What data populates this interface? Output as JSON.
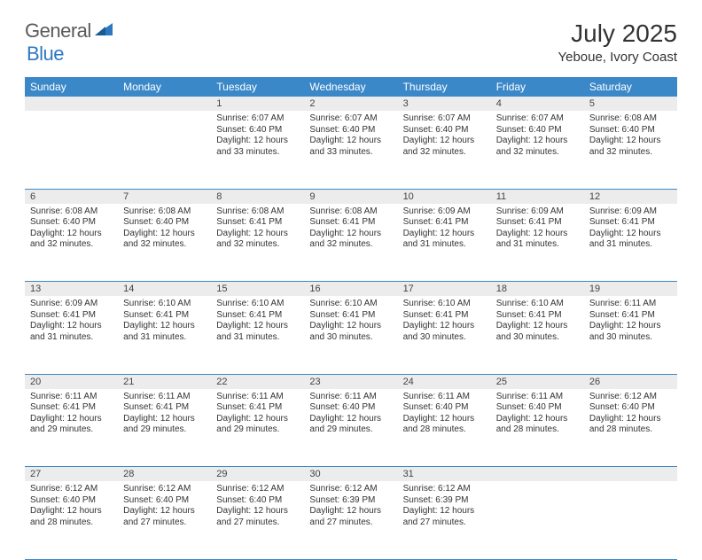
{
  "logo": {
    "general": "General",
    "blue": "Blue"
  },
  "title": "July 2025",
  "location": "Yeboue, Ivory Coast",
  "colors": {
    "header_bg": "#3b88c9",
    "header_text": "#ffffff",
    "daynum_bg": "#ececec",
    "border": "#3b88c9",
    "logo_gray": "#5a5a5a",
    "logo_blue": "#2d78c0",
    "body_text": "#333333"
  },
  "weekdays": [
    "Sunday",
    "Monday",
    "Tuesday",
    "Wednesday",
    "Thursday",
    "Friday",
    "Saturday"
  ],
  "weeks": [
    [
      null,
      null,
      {
        "n": "1",
        "sr": "Sunrise: 6:07 AM",
        "ss": "Sunset: 6:40 PM",
        "d1": "Daylight: 12 hours",
        "d2": "and 33 minutes."
      },
      {
        "n": "2",
        "sr": "Sunrise: 6:07 AM",
        "ss": "Sunset: 6:40 PM",
        "d1": "Daylight: 12 hours",
        "d2": "and 33 minutes."
      },
      {
        "n": "3",
        "sr": "Sunrise: 6:07 AM",
        "ss": "Sunset: 6:40 PM",
        "d1": "Daylight: 12 hours",
        "d2": "and 32 minutes."
      },
      {
        "n": "4",
        "sr": "Sunrise: 6:07 AM",
        "ss": "Sunset: 6:40 PM",
        "d1": "Daylight: 12 hours",
        "d2": "and 32 minutes."
      },
      {
        "n": "5",
        "sr": "Sunrise: 6:08 AM",
        "ss": "Sunset: 6:40 PM",
        "d1": "Daylight: 12 hours",
        "d2": "and 32 minutes."
      }
    ],
    [
      {
        "n": "6",
        "sr": "Sunrise: 6:08 AM",
        "ss": "Sunset: 6:40 PM",
        "d1": "Daylight: 12 hours",
        "d2": "and 32 minutes."
      },
      {
        "n": "7",
        "sr": "Sunrise: 6:08 AM",
        "ss": "Sunset: 6:40 PM",
        "d1": "Daylight: 12 hours",
        "d2": "and 32 minutes."
      },
      {
        "n": "8",
        "sr": "Sunrise: 6:08 AM",
        "ss": "Sunset: 6:41 PM",
        "d1": "Daylight: 12 hours",
        "d2": "and 32 minutes."
      },
      {
        "n": "9",
        "sr": "Sunrise: 6:08 AM",
        "ss": "Sunset: 6:41 PM",
        "d1": "Daylight: 12 hours",
        "d2": "and 32 minutes."
      },
      {
        "n": "10",
        "sr": "Sunrise: 6:09 AM",
        "ss": "Sunset: 6:41 PM",
        "d1": "Daylight: 12 hours",
        "d2": "and 31 minutes."
      },
      {
        "n": "11",
        "sr": "Sunrise: 6:09 AM",
        "ss": "Sunset: 6:41 PM",
        "d1": "Daylight: 12 hours",
        "d2": "and 31 minutes."
      },
      {
        "n": "12",
        "sr": "Sunrise: 6:09 AM",
        "ss": "Sunset: 6:41 PM",
        "d1": "Daylight: 12 hours",
        "d2": "and 31 minutes."
      }
    ],
    [
      {
        "n": "13",
        "sr": "Sunrise: 6:09 AM",
        "ss": "Sunset: 6:41 PM",
        "d1": "Daylight: 12 hours",
        "d2": "and 31 minutes."
      },
      {
        "n": "14",
        "sr": "Sunrise: 6:10 AM",
        "ss": "Sunset: 6:41 PM",
        "d1": "Daylight: 12 hours",
        "d2": "and 31 minutes."
      },
      {
        "n": "15",
        "sr": "Sunrise: 6:10 AM",
        "ss": "Sunset: 6:41 PM",
        "d1": "Daylight: 12 hours",
        "d2": "and 31 minutes."
      },
      {
        "n": "16",
        "sr": "Sunrise: 6:10 AM",
        "ss": "Sunset: 6:41 PM",
        "d1": "Daylight: 12 hours",
        "d2": "and 30 minutes."
      },
      {
        "n": "17",
        "sr": "Sunrise: 6:10 AM",
        "ss": "Sunset: 6:41 PM",
        "d1": "Daylight: 12 hours",
        "d2": "and 30 minutes."
      },
      {
        "n": "18",
        "sr": "Sunrise: 6:10 AM",
        "ss": "Sunset: 6:41 PM",
        "d1": "Daylight: 12 hours",
        "d2": "and 30 minutes."
      },
      {
        "n": "19",
        "sr": "Sunrise: 6:11 AM",
        "ss": "Sunset: 6:41 PM",
        "d1": "Daylight: 12 hours",
        "d2": "and 30 minutes."
      }
    ],
    [
      {
        "n": "20",
        "sr": "Sunrise: 6:11 AM",
        "ss": "Sunset: 6:41 PM",
        "d1": "Daylight: 12 hours",
        "d2": "and 29 minutes."
      },
      {
        "n": "21",
        "sr": "Sunrise: 6:11 AM",
        "ss": "Sunset: 6:41 PM",
        "d1": "Daylight: 12 hours",
        "d2": "and 29 minutes."
      },
      {
        "n": "22",
        "sr": "Sunrise: 6:11 AM",
        "ss": "Sunset: 6:41 PM",
        "d1": "Daylight: 12 hours",
        "d2": "and 29 minutes."
      },
      {
        "n": "23",
        "sr": "Sunrise: 6:11 AM",
        "ss": "Sunset: 6:40 PM",
        "d1": "Daylight: 12 hours",
        "d2": "and 29 minutes."
      },
      {
        "n": "24",
        "sr": "Sunrise: 6:11 AM",
        "ss": "Sunset: 6:40 PM",
        "d1": "Daylight: 12 hours",
        "d2": "and 28 minutes."
      },
      {
        "n": "25",
        "sr": "Sunrise: 6:11 AM",
        "ss": "Sunset: 6:40 PM",
        "d1": "Daylight: 12 hours",
        "d2": "and 28 minutes."
      },
      {
        "n": "26",
        "sr": "Sunrise: 6:12 AM",
        "ss": "Sunset: 6:40 PM",
        "d1": "Daylight: 12 hours",
        "d2": "and 28 minutes."
      }
    ],
    [
      {
        "n": "27",
        "sr": "Sunrise: 6:12 AM",
        "ss": "Sunset: 6:40 PM",
        "d1": "Daylight: 12 hours",
        "d2": "and 28 minutes."
      },
      {
        "n": "28",
        "sr": "Sunrise: 6:12 AM",
        "ss": "Sunset: 6:40 PM",
        "d1": "Daylight: 12 hours",
        "d2": "and 27 minutes."
      },
      {
        "n": "29",
        "sr": "Sunrise: 6:12 AM",
        "ss": "Sunset: 6:40 PM",
        "d1": "Daylight: 12 hours",
        "d2": "and 27 minutes."
      },
      {
        "n": "30",
        "sr": "Sunrise: 6:12 AM",
        "ss": "Sunset: 6:39 PM",
        "d1": "Daylight: 12 hours",
        "d2": "and 27 minutes."
      },
      {
        "n": "31",
        "sr": "Sunrise: 6:12 AM",
        "ss": "Sunset: 6:39 PM",
        "d1": "Daylight: 12 hours",
        "d2": "and 27 minutes."
      },
      null,
      null
    ]
  ]
}
